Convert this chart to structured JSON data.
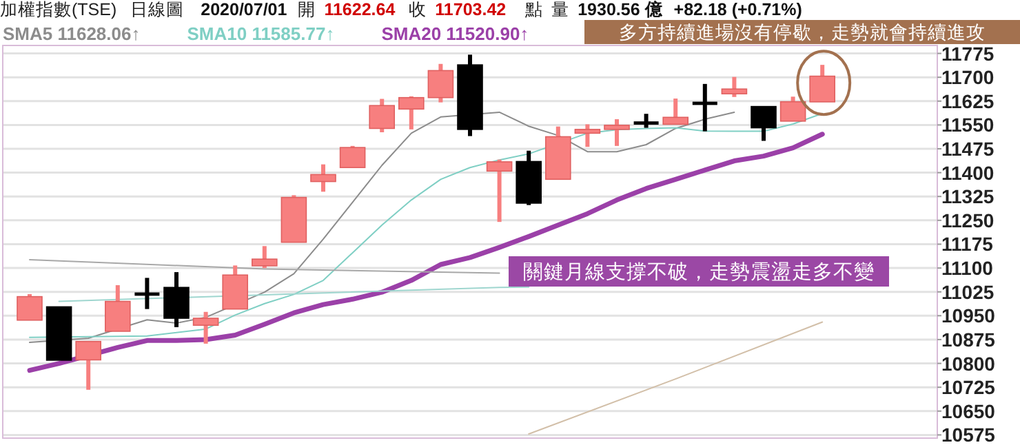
{
  "chart_data": {
    "type": "candlestick",
    "title": "加權指數(TSE)",
    "annotations": [
      "日線圖",
      "2020/07/01",
      "開",
      "11622.64",
      "收",
      "11703.42",
      "點",
      "量",
      "1930.56 億",
      "+82.18 (+0.71%)",
      "多方持續進場沒有停歇，走勢就會持續進攻",
      "關鍵月線支撐不破，走勢震盪走多不變"
    ],
    "categories": [
      null,
      null,
      null,
      null,
      null,
      null,
      null,
      null,
      null,
      null,
      null,
      null,
      null,
      null,
      null,
      null,
      null,
      null,
      null,
      null,
      null,
      null,
      null,
      null,
      null,
      null,
      null,
      null
    ],
    "ohlc": [
      [
        10936,
        11018,
        10936,
        11010
      ],
      [
        10978,
        10978,
        10810,
        10810
      ],
      [
        10811,
        10869,
        10717,
        10869
      ],
      [
        10901,
        11046,
        10901,
        10995
      ],
      [
        11018,
        11069,
        10971,
        11018
      ],
      [
        11039,
        11087,
        10914,
        10942
      ],
      [
        10920,
        10962,
        10862,
        10942
      ],
      [
        10971,
        11108,
        10971,
        11078
      ],
      [
        11107,
        11169,
        11100,
        11128
      ],
      [
        11181,
        11329,
        11181,
        11322
      ],
      [
        11372,
        11426,
        11340,
        11394
      ],
      [
        11416,
        11484,
        11416,
        11479
      ],
      [
        11539,
        11632,
        11527,
        11611
      ],
      [
        11600,
        11640,
        11536,
        11636
      ],
      [
        11636,
        11742,
        11621,
        11721
      ],
      [
        11739,
        11771,
        11515,
        11536
      ],
      [
        11405,
        11441,
        11245,
        11434
      ],
      [
        11435,
        11469,
        11298,
        11304
      ],
      [
        11379,
        11545,
        11379,
        11513
      ],
      [
        11524,
        11552,
        11481,
        11536
      ],
      [
        11536,
        11568,
        11484,
        11549
      ],
      [
        11556,
        11585,
        11541,
        11556
      ],
      [
        11552,
        11633,
        11552,
        11574
      ],
      [
        11618,
        11679,
        11530,
        11618
      ],
      [
        11648,
        11701,
        11638,
        11663
      ],
      [
        11608,
        11608,
        11500,
        11541
      ],
      [
        11562,
        11639,
        11562,
        11623
      ],
      [
        11622.64,
        11739,
        11622.64,
        11703.42
      ]
    ],
    "colors": [
      "#f77f7f",
      "#000000",
      "#f77f7f",
      "#f77f7f",
      "#000000",
      "#000000",
      "#f77f7f",
      "#f77f7f",
      "#f77f7f",
      "#f77f7f",
      "#f77f7f",
      "#f77f7f",
      "#f77f7f",
      "#f77f7f",
      "#f77f7f",
      "#000000",
      "#f77f7f",
      "#000000",
      "#f77f7f",
      "#f77f7f",
      "#f77f7f",
      "#000000",
      "#f77f7f",
      "#000000",
      "#f77f7f",
      "#000000",
      "#f77f7f",
      "#f77f7f"
    ],
    "series": [
      {
        "type": "line",
        "name": "SMA5 11628.06↑",
        "color": "#8c8c8c",
        "values": [
          10866,
          null,
          10879,
          null,
          10937,
          10927,
          10945,
          null,
          11024,
          11082,
          11191,
          11307,
          11423,
          11524,
          11575,
          null,
          11590,
          11546,
          11517,
          11466,
          11466,
          11488,
          11539,
          11568,
          11590,
          null,
          null,
          null
        ]
      },
      {
        "type": "line",
        "name": "SMA10 11585.77↑",
        "color": "#7fcfc4",
        "values": [
          10882,
          null,
          null,
          null,
          10886,
          null,
          10908,
          10952,
          10988,
          11017,
          11061,
          11148,
          11235,
          11314,
          11379,
          11416,
          11440,
          11459,
          null,
          11524,
          11535,
          11539,
          11541,
          11531,
          11530,
          11530,
          11553,
          11586
        ]
      },
      {
        "type": "line",
        "name": "SMA20 11520.90↑",
        "color": "#9b40a8",
        "values": [
          10778,
          10800,
          null,
          10850,
          10872,
          10872,
          10875,
          10889,
          10923,
          10959,
          10985,
          11002,
          11024,
          11061,
          11111,
          11133,
          11165,
          11199,
          11235,
          11271,
          11314,
          11350,
          11379,
          11408,
          11437,
          11452,
          11478,
          11521
        ]
      },
      {
        "type": "line",
        "color": "#a8a8a8",
        "values": [
          11126,
          null,
          null,
          null,
          null,
          null,
          null,
          null,
          11097,
          null,
          null,
          null,
          null,
          null,
          null,
          null,
          11084,
          null,
          null,
          null,
          null,
          null,
          null,
          null,
          null,
          null,
          null,
          null
        ]
      },
      {
        "type": "line",
        "color": "#9fd6cf",
        "values": [
          null,
          10995,
          null,
          null,
          null,
          null,
          null,
          null,
          null,
          null,
          null,
          null,
          null,
          null,
          null,
          null,
          11039,
          11040,
          null,
          null,
          null,
          null,
          null,
          null,
          null,
          null,
          null,
          null
        ]
      },
      {
        "type": "line",
        "color": "#d2bfa8",
        "values": [
          null,
          null,
          null,
          null,
          null,
          null,
          null,
          null,
          null,
          null,
          null,
          null,
          null,
          null,
          null,
          null,
          null,
          10578,
          null,
          null,
          null,
          null,
          10751,
          null,
          null,
          null,
          null,
          10930
        ]
      }
    ],
    "ylim": [
      10565,
      11800
    ],
    "yticks": [
      11775,
      11700,
      11625,
      11550,
      11475,
      11400,
      11325,
      11250,
      11175,
      11100,
      11025,
      10950,
      10875,
      10800,
      10725,
      10650,
      10575
    ],
    "grid": "y",
    "legend": "top left"
  }
}
